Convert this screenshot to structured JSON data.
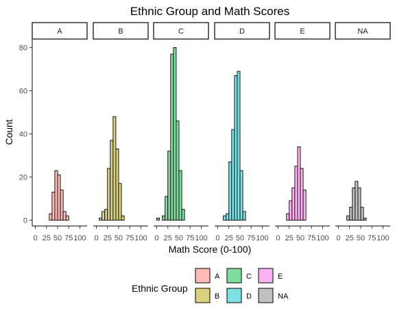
{
  "chart_data": {
    "type": "bar",
    "title": "Ethnic Group and Math Scores",
    "xlabel": "Math Score (0-100)",
    "ylabel": "Count",
    "ylim": [
      0,
      90
    ],
    "xlim": [
      0,
      100
    ],
    "bin_width": 6.25,
    "bin_starts": [
      0,
      6.25,
      12.5,
      18.75,
      25,
      31.25,
      37.5,
      43.75,
      50,
      56.25,
      62.5,
      68.75,
      75,
      81.25,
      87.5,
      93.75
    ],
    "x_ticks": [
      "0",
      "25",
      "50",
      "75",
      "100"
    ],
    "y_ticks": [
      0,
      20,
      40,
      60,
      80
    ],
    "grid": false,
    "legend": {
      "title": "Ethnic Group",
      "position": "bottom",
      "entries": [
        "A",
        "B",
        "C",
        "D",
        "E",
        "NA"
      ]
    },
    "series": [
      {
        "name": "A",
        "color": "#F8766D",
        "values": [
          0,
          0,
          0,
          0,
          0,
          3,
          13,
          23,
          21,
          14,
          4,
          2,
          0,
          0,
          0,
          0
        ]
      },
      {
        "name": "B",
        "color": "#B79F00",
        "values": [
          0,
          1,
          4,
          5,
          24,
          37,
          48,
          33,
          17,
          2,
          0,
          0,
          0,
          0,
          0,
          0
        ]
      },
      {
        "name": "C",
        "color": "#00BA38",
        "values": [
          1,
          0,
          2,
          11,
          32,
          77,
          80,
          46,
          23,
          5,
          0,
          0,
          0,
          0,
          0,
          0
        ]
      },
      {
        "name": "D",
        "color": "#00BFC4",
        "values": [
          0,
          0,
          2,
          3,
          27,
          42,
          67,
          69,
          23,
          4,
          0,
          0,
          0,
          0,
          0,
          0
        ]
      },
      {
        "name": "E",
        "color": "#F564E3",
        "values": [
          0,
          0,
          0,
          3,
          9,
          15,
          25,
          34,
          24,
          14,
          0,
          0,
          0,
          0,
          0,
          0
        ]
      },
      {
        "name": "NA",
        "color": "#808080",
        "values": [
          0,
          0,
          0,
          2,
          6,
          15,
          18,
          15,
          6,
          1,
          0,
          0,
          0,
          0,
          0,
          0
        ]
      }
    ]
  }
}
